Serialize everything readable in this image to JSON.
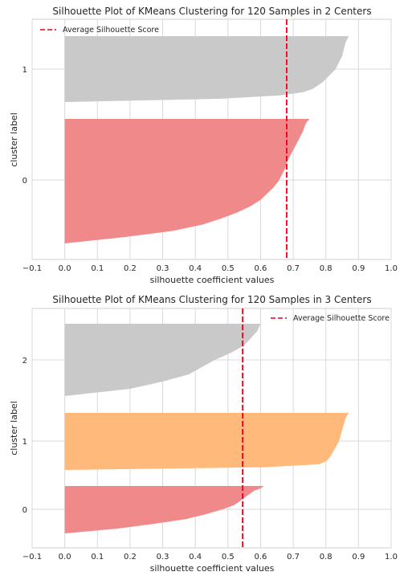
{
  "chart_data": [
    {
      "type": "area",
      "title": "Silhouette Plot of KMeans Clustering for 120 Samples in 2 Centers",
      "xlabel": "silhouette coefficient values",
      "ylabel": "cluster label",
      "xlim": [
        -0.1,
        1.0
      ],
      "xticks": [
        "−0.1",
        "0.0",
        "0.1",
        "0.2",
        "0.3",
        "0.4",
        "0.5",
        "0.6",
        "0.7",
        "0.8",
        "0.9",
        "1.0"
      ],
      "grid": true,
      "legend_position": "top-left",
      "average_line": {
        "label": "Average Silhouette Score",
        "value": 0.68,
        "color": "#e8001c"
      },
      "series": [
        {
          "name": "0",
          "color": "#f08a8a",
          "max": 0.75,
          "min": 0.0,
          "profile": [
            [
              0,
              0.75
            ],
            [
              0.03,
              0.74
            ],
            [
              0.06,
              0.735
            ],
            [
              0.1,
              0.73
            ],
            [
              0.15,
              0.72
            ],
            [
              0.2,
              0.71
            ],
            [
              0.25,
              0.7
            ],
            [
              0.3,
              0.69
            ],
            [
              0.35,
              0.68
            ],
            [
              0.4,
              0.675
            ],
            [
              0.45,
              0.665
            ],
            [
              0.5,
              0.655
            ],
            [
              0.55,
              0.64
            ],
            [
              0.6,
              0.62
            ],
            [
              0.65,
              0.6
            ],
            [
              0.7,
              0.57
            ],
            [
              0.75,
              0.53
            ],
            [
              0.8,
              0.48
            ],
            [
              0.85,
              0.42
            ],
            [
              0.9,
              0.33
            ],
            [
              0.95,
              0.18
            ],
            [
              1,
              0.0
            ]
          ]
        },
        {
          "name": "1",
          "color": "#c9c9c9",
          "max": 0.87,
          "min": 0.0,
          "profile": [
            [
              0,
              0.87
            ],
            [
              0.05,
              0.865
            ],
            [
              0.1,
              0.86
            ],
            [
              0.2,
              0.855
            ],
            [
              0.3,
              0.85
            ],
            [
              0.4,
              0.84
            ],
            [
              0.5,
              0.83
            ],
            [
              0.6,
              0.81
            ],
            [
              0.7,
              0.79
            ],
            [
              0.8,
              0.76
            ],
            [
              0.85,
              0.73
            ],
            [
              0.9,
              0.66
            ],
            [
              0.95,
              0.48
            ],
            [
              1,
              0.0
            ]
          ]
        }
      ],
      "ytick_labels": [
        "0",
        "1"
      ]
    },
    {
      "type": "area",
      "title": "Silhouette Plot of KMeans Clustering for 120 Samples in 3 Centers",
      "xlabel": "silhouette coefficient values",
      "ylabel": "cluster label",
      "xlim": [
        -0.1,
        1.0
      ],
      "xticks": [
        "−0.1",
        "0.0",
        "0.1",
        "0.2",
        "0.3",
        "0.4",
        "0.5",
        "0.6",
        "0.7",
        "0.8",
        "0.9",
        "1.0"
      ],
      "grid": true,
      "legend_position": "top-right",
      "average_line": {
        "label": "Average Silhouette Score",
        "value": 0.545,
        "color": "#e8001c"
      },
      "series": [
        {
          "name": "0",
          "color": "#f08a8a",
          "max": 0.61,
          "min": 0.0,
          "profile": [
            [
              0,
              0.61
            ],
            [
              0.05,
              0.6
            ],
            [
              0.1,
              0.58
            ],
            [
              0.15,
              0.57
            ],
            [
              0.2,
              0.56
            ],
            [
              0.3,
              0.54
            ],
            [
              0.4,
              0.52
            ],
            [
              0.5,
              0.48
            ],
            [
              0.6,
              0.43
            ],
            [
              0.7,
              0.37
            ],
            [
              0.8,
              0.27
            ],
            [
              0.9,
              0.16
            ],
            [
              1,
              0.0
            ]
          ]
        },
        {
          "name": "1",
          "color": "#ffb97b",
          "max": 0.87,
          "min": 0.0,
          "profile": [
            [
              0,
              0.87
            ],
            [
              0.05,
              0.865
            ],
            [
              0.1,
              0.86
            ],
            [
              0.2,
              0.855
            ],
            [
              0.3,
              0.85
            ],
            [
              0.4,
              0.845
            ],
            [
              0.5,
              0.84
            ],
            [
              0.6,
              0.83
            ],
            [
              0.7,
              0.82
            ],
            [
              0.8,
              0.81
            ],
            [
              0.85,
              0.8
            ],
            [
              0.9,
              0.78
            ],
            [
              0.95,
              0.62
            ],
            [
              1,
              0.0
            ]
          ]
        },
        {
          "name": "2",
          "color": "#c9c9c9",
          "max": 0.6,
          "min": 0.0,
          "profile": [
            [
              0,
              0.6
            ],
            [
              0.05,
              0.595
            ],
            [
              0.1,
              0.59
            ],
            [
              0.15,
              0.58
            ],
            [
              0.2,
              0.57
            ],
            [
              0.3,
              0.55
            ],
            [
              0.4,
              0.51
            ],
            [
              0.5,
              0.46
            ],
            [
              0.6,
              0.42
            ],
            [
              0.7,
              0.38
            ],
            [
              0.8,
              0.3
            ],
            [
              0.9,
              0.2
            ],
            [
              1,
              0.0
            ]
          ]
        }
      ],
      "ytick_labels": [
        "0",
        "1",
        "2"
      ]
    }
  ]
}
